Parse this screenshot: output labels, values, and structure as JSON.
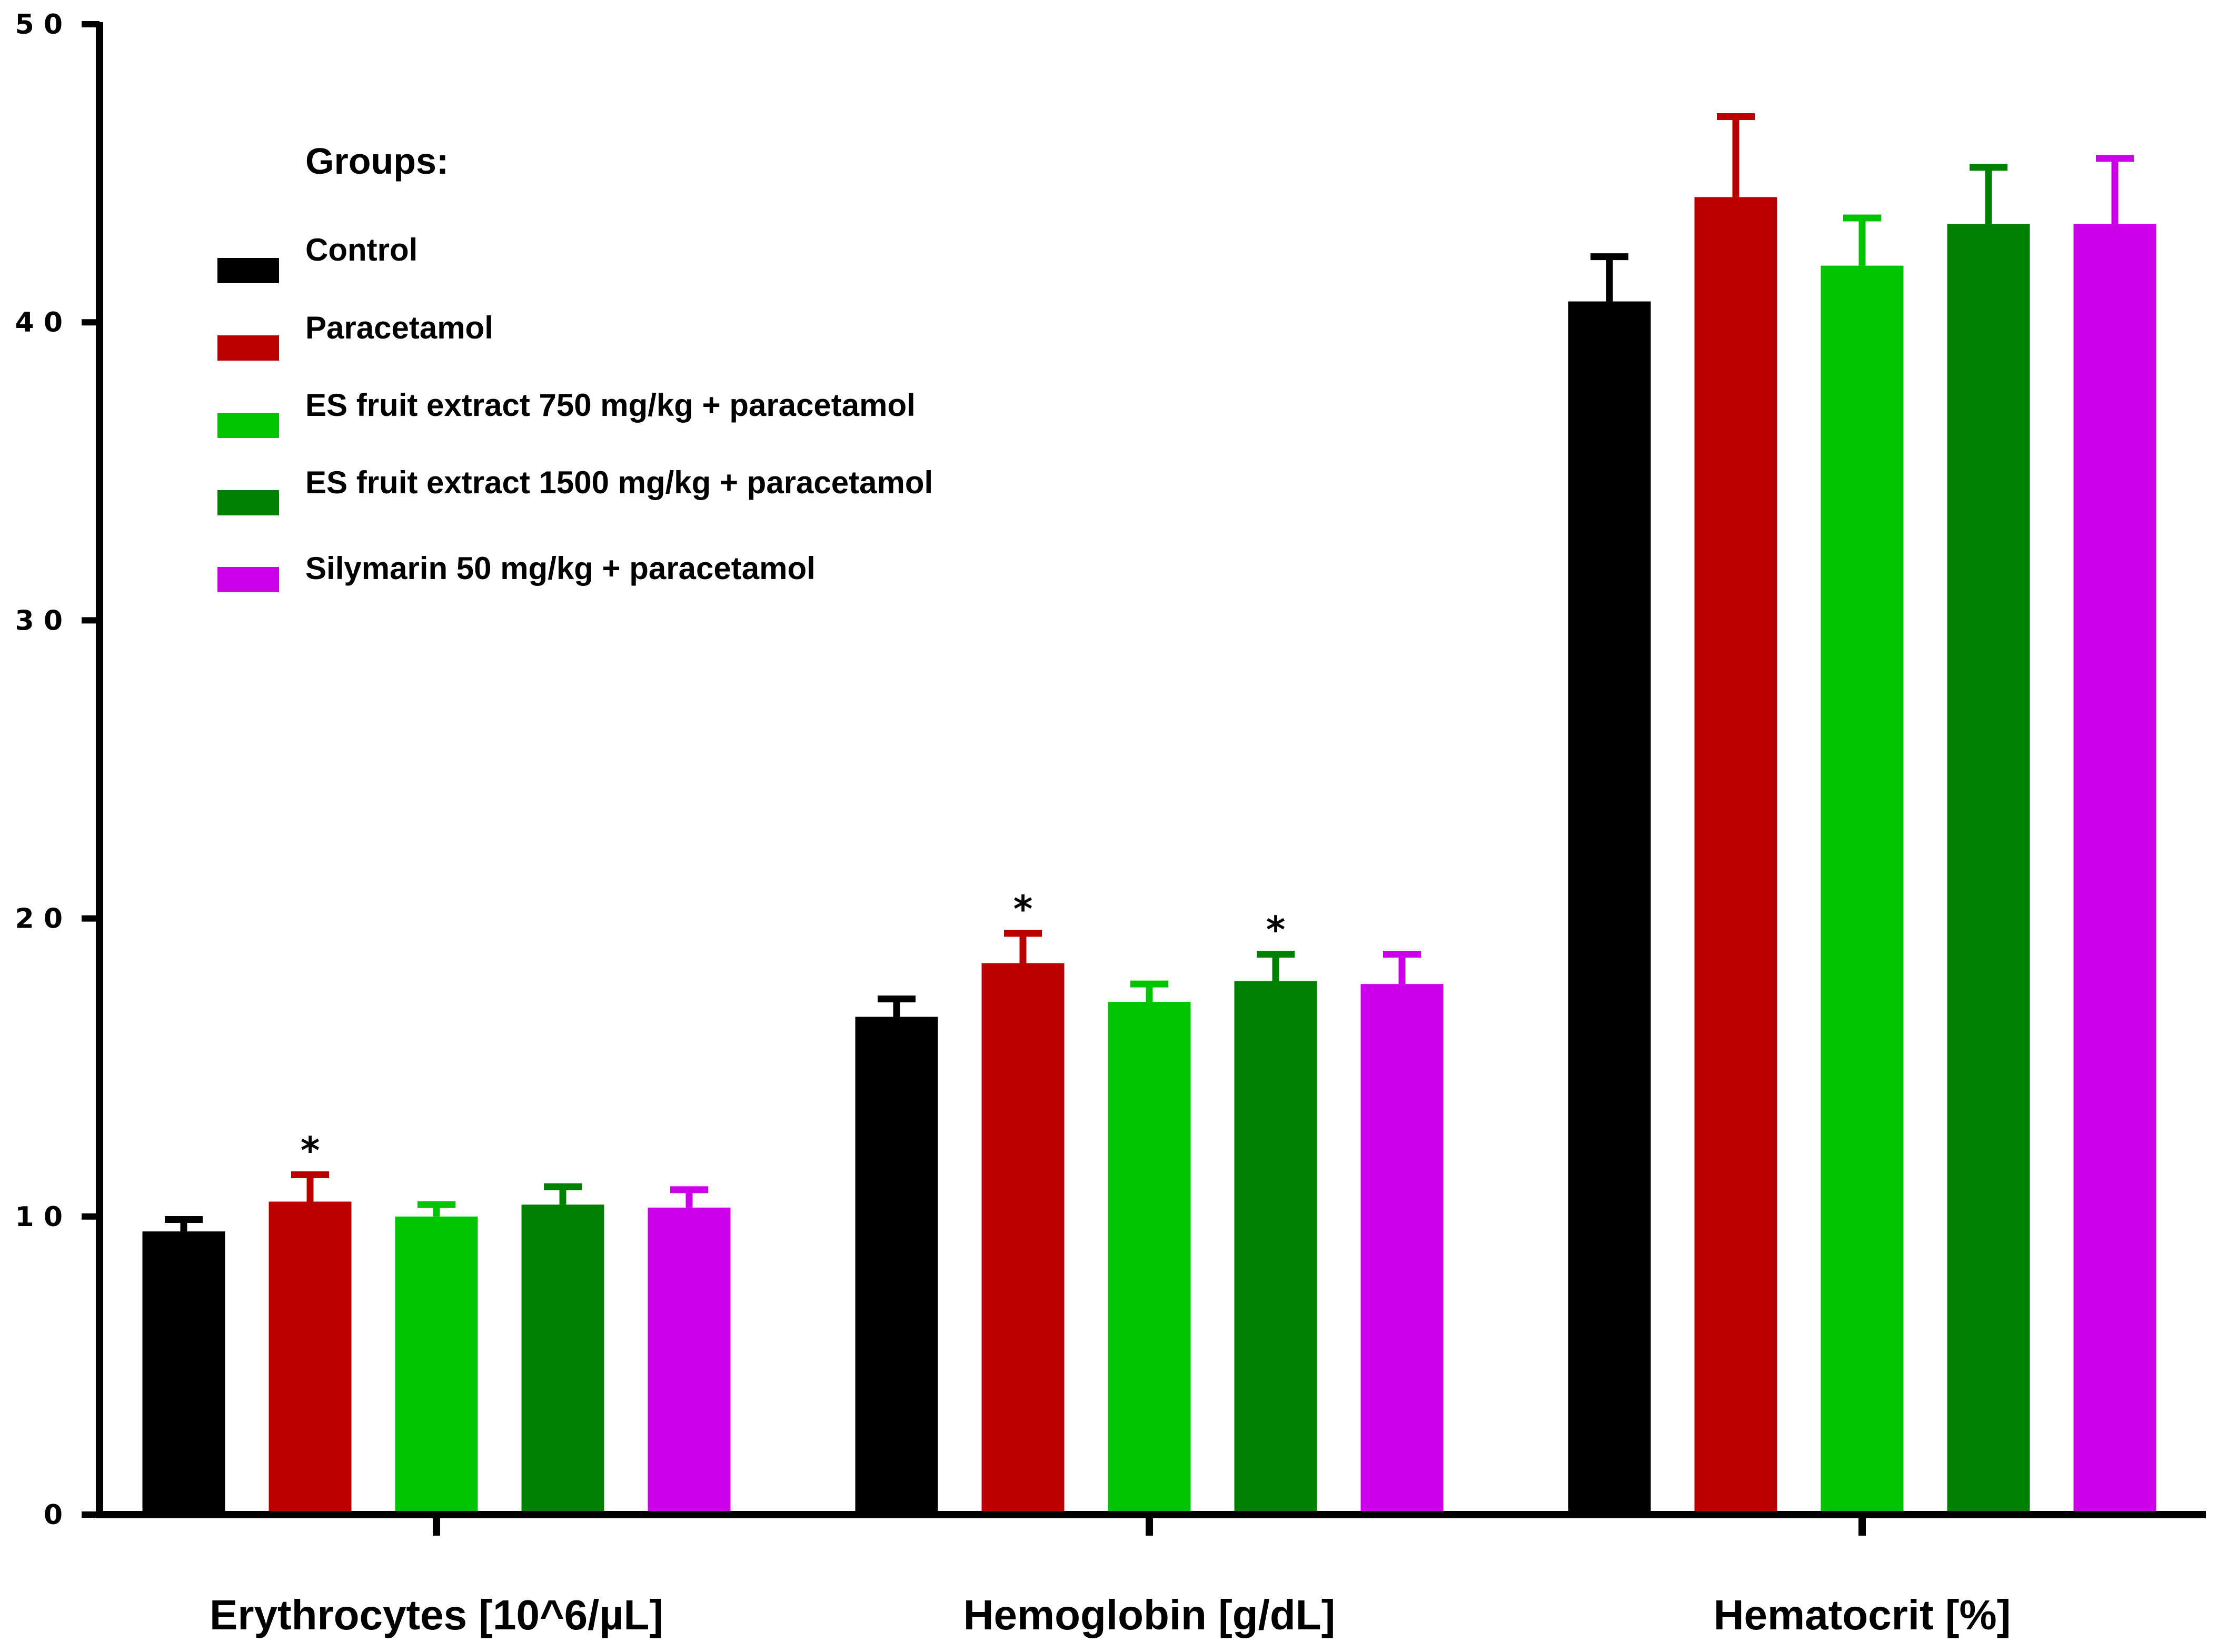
{
  "chart_data": {
    "type": "bar",
    "title": "",
    "xlabel": "",
    "ylabel": "",
    "ylim": [
      0,
      50
    ],
    "yticks": [
      {
        "value": 0,
        "label": "0"
      },
      {
        "value": 10,
        "label": "1 0"
      },
      {
        "value": 20,
        "label": "2 0"
      },
      {
        "value": 30,
        "label": "3 0"
      },
      {
        "value": 40,
        "label": "4 0"
      },
      {
        "value": 50,
        "label": "5 0"
      }
    ],
    "categories": [
      "Erythrocytes [10^6/µL]",
      "Hemoglobin [g/dL]",
      "Hematocrit [%]"
    ],
    "legend_title": "Groups:",
    "legend_position": "top-left",
    "significance_marker": "*",
    "series": [
      {
        "name": "Control",
        "color": "#000000",
        "values": [
          9.5,
          16.7,
          40.7
        ],
        "errors": [
          0.4,
          0.6,
          1.5
        ],
        "significant": [
          false,
          false,
          false
        ]
      },
      {
        "name": "Paracetamol",
        "color": "#bb0000",
        "values": [
          10.5,
          18.5,
          44.2
        ],
        "errors": [
          0.9,
          1.0,
          2.7
        ],
        "significant": [
          true,
          true,
          false
        ]
      },
      {
        "name": "ES fruit extract 750 mg/kg + paracetamol",
        "color": "#00c400",
        "values": [
          10.0,
          17.2,
          41.9
        ],
        "errors": [
          0.4,
          0.6,
          1.6
        ],
        "significant": [
          false,
          false,
          false
        ]
      },
      {
        "name": "ES fruit extract 1500 mg/kg + paracetamol",
        "color": "#008000",
        "values": [
          10.4,
          17.9,
          43.3
        ],
        "errors": [
          0.6,
          0.9,
          1.9
        ],
        "significant": [
          false,
          true,
          false
        ]
      },
      {
        "name": "Silymarin 50 mg/kg + paracetamol",
        "color": "#cc00e8",
        "values": [
          10.3,
          17.8,
          43.3
        ],
        "errors": [
          0.6,
          1.0,
          2.2
        ],
        "significant": [
          false,
          false,
          false
        ]
      }
    ]
  }
}
